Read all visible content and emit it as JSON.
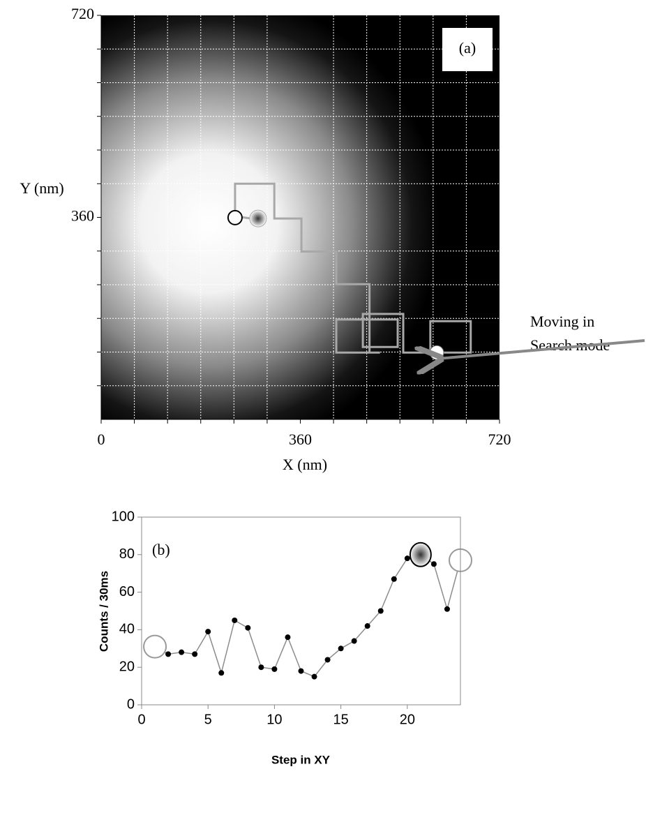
{
  "chart_data": [
    {
      "type": "path",
      "label": "(a)",
      "xlabel": "X (nm)",
      "ylabel": "Y (nm)",
      "xlim": [
        0,
        720
      ],
      "ylim": [
        0,
        720
      ],
      "xticks": [
        0,
        360,
        720
      ],
      "yticks": [
        360,
        720
      ],
      "minor_xticks": [
        60,
        120,
        180,
        240,
        300,
        420,
        480,
        540,
        600,
        660
      ],
      "minor_yticks": [
        60,
        120,
        180,
        240,
        300,
        420,
        480,
        540,
        600,
        660
      ],
      "grid": true,
      "annotation": [
        "Moving in",
        "Search mode"
      ],
      "series": [
        {
          "color": "#a8a8a8",
          "x": [
            599,
            668,
            668,
            595,
            595,
            546,
            546,
            473,
            473,
            536,
            536,
            504,
            425,
            425,
            504,
            485,
            485,
            425,
            425,
            362,
            362,
            313,
            313,
            242,
            242,
            271
          ],
          "y": [
            119,
            119,
            175,
            175,
            119,
            119,
            188,
            188,
            129,
            129,
            178,
            178,
            178,
            119,
            119,
            119,
            241,
            241,
            299,
            299,
            358,
            358,
            420,
            420,
            362,
            358
          ]
        }
      ]
    },
    {
      "type": "line",
      "label": "(b)",
      "xlabel": "Step in XY",
      "ylabel": "Counts / 30ms",
      "x": [
        1,
        2,
        3,
        4,
        5,
        6,
        7,
        8,
        9,
        10,
        11,
        12,
        13,
        14,
        15,
        16,
        17,
        18,
        19,
        20,
        21,
        22,
        23,
        24
      ],
      "series": [
        {
          "color": "#8c8c8c",
          "values": [
            31,
            27,
            28,
            27,
            39,
            17,
            45,
            41,
            20,
            19,
            36,
            18,
            15,
            24,
            30,
            34,
            42,
            50,
            67,
            78,
            80,
            75,
            51,
            77
          ]
        }
      ],
      "xlim": [
        0,
        24
      ],
      "ylim": [
        0,
        100
      ],
      "xticks": [
        0,
        5,
        10,
        15,
        20
      ],
      "yticks": [
        0,
        20,
        40,
        60,
        80,
        100
      ]
    }
  ]
}
